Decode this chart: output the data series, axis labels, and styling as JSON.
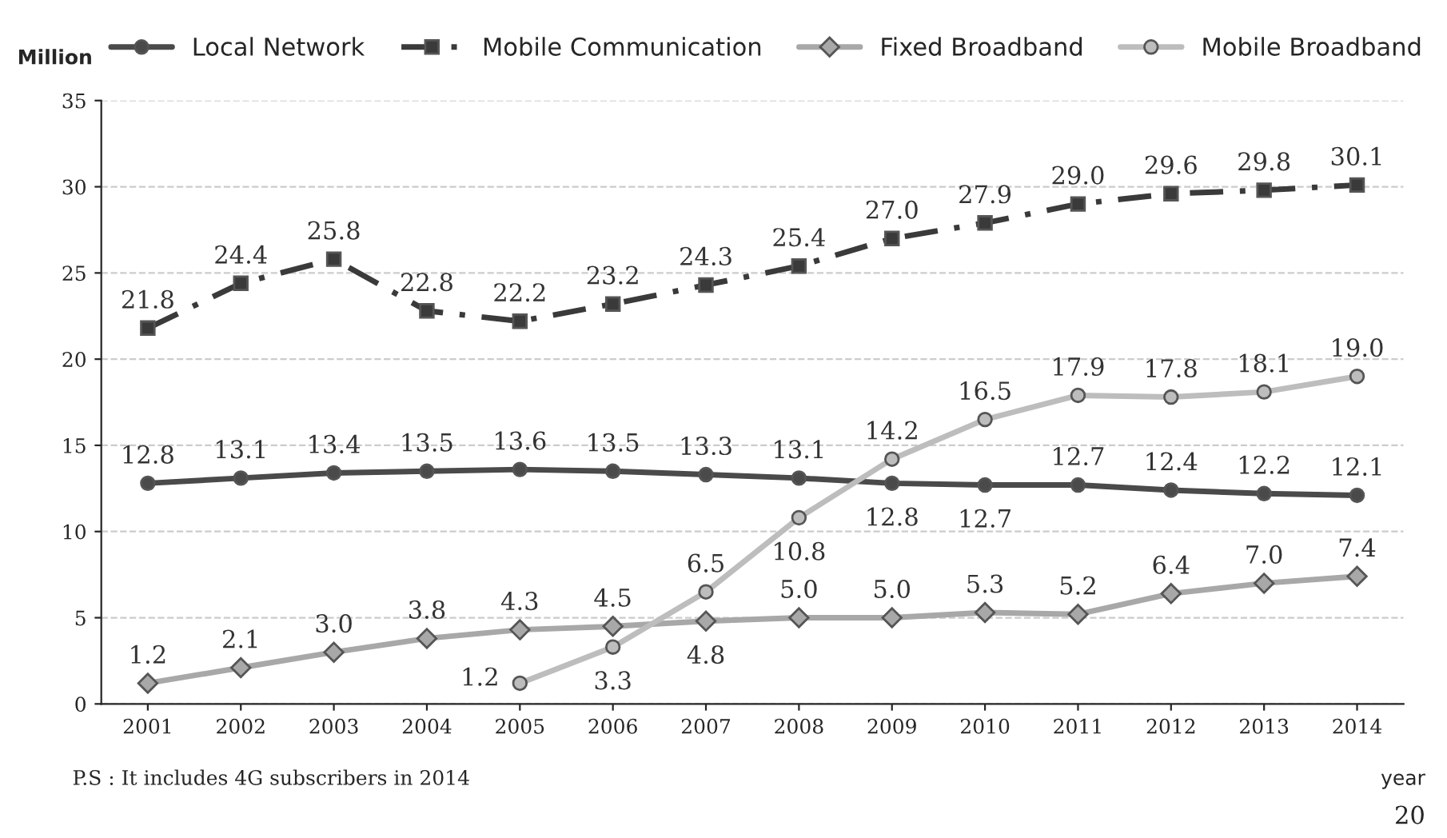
{
  "chart_data": {
    "type": "line",
    "ylabel": "Million",
    "xlabel": "year",
    "categories": [
      "2001",
      "2002",
      "2003",
      "2004",
      "2005",
      "2006",
      "2007",
      "2008",
      "2009",
      "2010",
      "2011",
      "2012",
      "2013",
      "2014"
    ],
    "series": [
      {
        "name": "Local Network",
        "color": "#4a4a4a",
        "marker": "circle",
        "line_style": "solid",
        "values": [
          12.8,
          13.1,
          13.4,
          13.5,
          13.6,
          13.5,
          13.3,
          13.1,
          12.8,
          12.7,
          12.7,
          12.4,
          12.2,
          12.1
        ],
        "value_labels": [
          "12.8",
          "13.1",
          "13.4",
          "13.5",
          "13.6",
          "13.5",
          "13.3",
          "13.1",
          "12.8",
          "12.7",
          "12.7",
          "12.4",
          "12.2",
          "12.1"
        ]
      },
      {
        "name": "Mobile Communication",
        "color": "#3a3a3a",
        "marker": "square",
        "line_style": "dashed",
        "values": [
          21.8,
          24.4,
          25.8,
          22.8,
          22.2,
          23.2,
          24.3,
          25.4,
          27.0,
          27.9,
          29.0,
          29.6,
          29.8,
          30.1
        ],
        "value_labels": [
          "21.8",
          "24.4",
          "25.8",
          "22.8",
          "22.2",
          "23.2",
          "24.3",
          "25.4",
          "27.0",
          "27.9",
          "29.0",
          "29.6",
          "29.8",
          "30.1"
        ]
      },
      {
        "name": "Fixed Broadband",
        "color": "#a8a8a8",
        "marker": "diamond",
        "line_style": "solid",
        "values": [
          1.2,
          2.1,
          3.0,
          3.8,
          4.3,
          4.5,
          4.8,
          5.0,
          5.0,
          5.3,
          5.2,
          6.4,
          7.0,
          7.4
        ],
        "value_labels": [
          "1.2",
          "2.1",
          "3.0",
          "3.8",
          "4.3",
          "4.5",
          "4.8",
          "5.0",
          "5.0",
          "5.3",
          "5.2",
          "6.4",
          "7.0",
          "7.4"
        ]
      },
      {
        "name": "Mobile Broadband",
        "color": "#bdbdbd",
        "marker": "circle",
        "line_style": "solid",
        "values": [
          null,
          null,
          null,
          null,
          1.2,
          3.3,
          6.5,
          10.8,
          14.2,
          16.5,
          17.9,
          17.8,
          18.1,
          19.0
        ],
        "value_labels": [
          null,
          null,
          null,
          null,
          "1.2",
          "3.3",
          "6.5",
          "10.8",
          "14.2",
          "16.5",
          "17.9",
          "17.8",
          "18.1",
          "19.0"
        ]
      }
    ],
    "ylim": [
      0,
      35
    ],
    "yticks": [
      0,
      5,
      10,
      15,
      20,
      25,
      30,
      35
    ],
    "grid": "y",
    "legend": "top",
    "annotations": [
      "P.S : It includes 4G subscribers in 2014",
      "20"
    ]
  }
}
